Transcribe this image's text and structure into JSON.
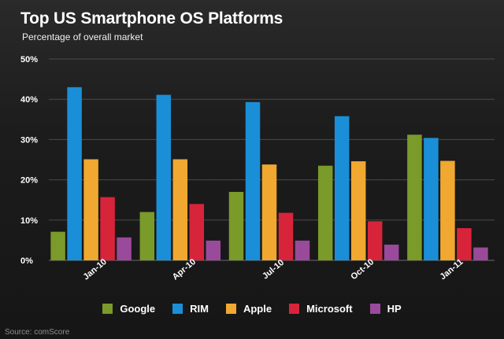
{
  "title": "Top US Smartphone OS Platforms",
  "subtitle": "Percentage of overall market",
  "source": "Source: comScore",
  "chart_data": {
    "type": "bar",
    "title": "Top US Smartphone OS Platforms",
    "subtitle": "Percentage of overall market",
    "xlabel": "",
    "ylabel": "",
    "ylim": [
      0,
      50
    ],
    "yticks": [
      0,
      10,
      20,
      30,
      40,
      50
    ],
    "ytick_labels": [
      "0%",
      "10%",
      "20%",
      "30%",
      "40%",
      "50%"
    ],
    "grid": true,
    "legend_position": "bottom",
    "categories": [
      "Jan-10",
      "Apr-10",
      "Jul-10",
      "Oct-10",
      "Jan-11"
    ],
    "series": [
      {
        "name": "Google",
        "color": "#7a9a2a",
        "values": [
          7.1,
          12.0,
          17.0,
          23.5,
          31.2
        ]
      },
      {
        "name": "RIM",
        "color": "#1a8fd8",
        "values": [
          43.0,
          41.1,
          39.3,
          35.8,
          30.4
        ]
      },
      {
        "name": "Apple",
        "color": "#f0a830",
        "values": [
          25.1,
          25.1,
          23.8,
          24.6,
          24.7
        ]
      },
      {
        "name": "Microsoft",
        "color": "#d8243a",
        "values": [
          15.7,
          14.0,
          11.8,
          9.7,
          8.0
        ]
      },
      {
        "name": "HP",
        "color": "#9a4a9a",
        "values": [
          5.7,
          4.9,
          4.9,
          3.9,
          3.2
        ]
      }
    ]
  }
}
